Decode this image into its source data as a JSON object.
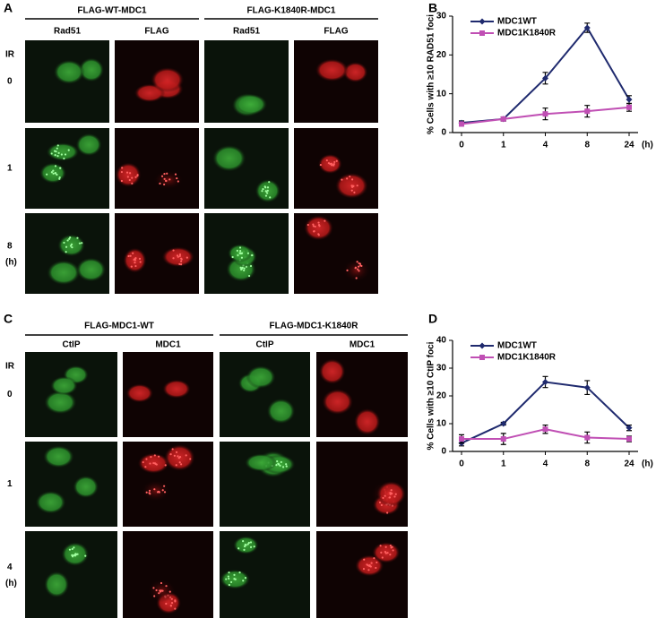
{
  "figure": {
    "panel_labels": [
      "A",
      "B",
      "C",
      "D"
    ],
    "panel_a": {
      "headers": [
        "FLAG-WT-MDC1",
        "FLAG-K1840R-MDC1"
      ],
      "channels": [
        "Rad51",
        "FLAG",
        "Rad51",
        "FLAG"
      ],
      "ir_label": "IR",
      "time_labels": [
        "0",
        "1",
        "8"
      ],
      "unit": "(h)"
    },
    "panel_c": {
      "headers": [
        "FLAG-MDC1-WT",
        "FLAG-MDC1-K1840R"
      ],
      "channels": [
        "CtIP",
        "MDC1",
        "CtIP",
        "MDC1"
      ],
      "ir_label": "IR",
      "time_labels": [
        "0",
        "1",
        "4"
      ],
      "unit": "(h)"
    }
  },
  "chart_data": [
    {
      "type": "line",
      "y_label": "% Cells with ≥10 RAD51 foci",
      "x_unit": "(h)",
      "categories": [
        "0",
        "1",
        "4",
        "8",
        "24"
      ],
      "ylim": [
        0,
        30
      ],
      "yticks": [
        0,
        10,
        20,
        30
      ],
      "legend": "upper left",
      "series": [
        {
          "name": "MDC1WT",
          "color": "#1f2a6e",
          "marker": "diamond",
          "values": [
            2.5,
            3.5,
            14,
            27,
            8.5
          ],
          "errors": [
            0.5,
            0.5,
            1.5,
            1.2,
            1
          ]
        },
        {
          "name": "MDC1K1840R",
          "color": "#c04fb4",
          "marker": "square",
          "values": [
            2.2,
            3.5,
            4.8,
            5.5,
            6.5
          ],
          "errors": [
            0.5,
            0.5,
            1.5,
            1.5,
            1
          ]
        }
      ]
    },
    {
      "type": "line",
      "y_label": "% Cells with ≥10 CtIP foci",
      "x_unit": "(h)",
      "categories": [
        "0",
        "1",
        "4",
        "8",
        "24"
      ],
      "ylim": [
        0,
        40
      ],
      "yticks": [
        0,
        10,
        20,
        30,
        40
      ],
      "legend": "upper left",
      "series": [
        {
          "name": "MDC1WT",
          "color": "#1f2a6e",
          "marker": "diamond",
          "values": [
            3,
            10,
            25,
            23,
            8.5
          ],
          "errors": [
            1,
            0.5,
            2,
            2.5,
            1
          ]
        },
        {
          "name": "MDC1K1840R",
          "color": "#c04fb4",
          "marker": "square",
          "values": [
            4.5,
            4.5,
            8,
            5,
            4.5
          ],
          "errors": [
            1.5,
            2,
            1.5,
            2,
            1
          ]
        }
      ]
    }
  ]
}
